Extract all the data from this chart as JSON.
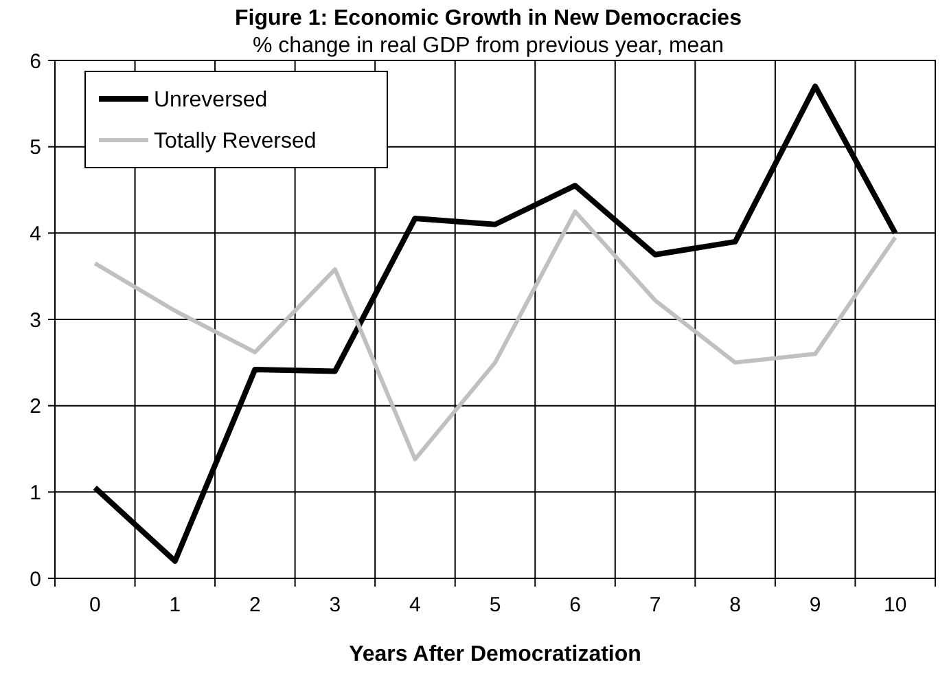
{
  "chart_data": {
    "type": "line",
    "title": "Figure 1: Economic Growth in New Democracies",
    "subtitle": "% change in real GDP from previous year, mean",
    "xlabel": "Years After Democratization",
    "categories": [
      "0",
      "1",
      "2",
      "3",
      "4",
      "5",
      "6",
      "7",
      "8",
      "9",
      "10"
    ],
    "series": [
      {
        "name": "Unreversed",
        "color": "#000000",
        "values": [
          1.05,
          0.2,
          2.42,
          2.4,
          4.17,
          4.1,
          4.55,
          3.75,
          3.9,
          5.7,
          4.0
        ]
      },
      {
        "name": "Totally Reversed",
        "color": "#c0c0c0",
        "values": [
          3.65,
          3.1,
          2.62,
          3.58,
          1.38,
          2.5,
          4.25,
          3.22,
          2.5,
          2.6,
          3.95
        ]
      }
    ],
    "ylim": [
      0,
      6
    ],
    "yticks": [
      0,
      1,
      2,
      3,
      4,
      5,
      6
    ],
    "grid": true,
    "legend": "top left",
    "marker": "none",
    "line_style": "solid"
  }
}
